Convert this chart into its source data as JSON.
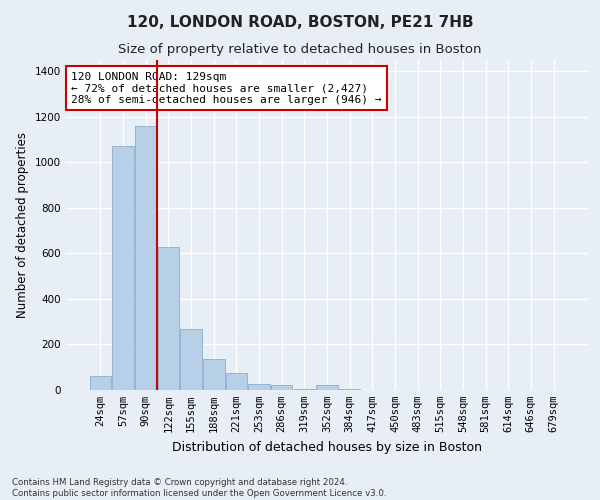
{
  "title": "120, LONDON ROAD, BOSTON, PE21 7HB",
  "subtitle": "Size of property relative to detached houses in Boston",
  "xlabel": "Distribution of detached houses by size in Boston",
  "ylabel": "Number of detached properties",
  "categories": [
    "24sqm",
    "57sqm",
    "90sqm",
    "122sqm",
    "155sqm",
    "188sqm",
    "221sqm",
    "253sqm",
    "286sqm",
    "319sqm",
    "352sqm",
    "384sqm",
    "417sqm",
    "450sqm",
    "483sqm",
    "515sqm",
    "548sqm",
    "581sqm",
    "614sqm",
    "646sqm",
    "679sqm"
  ],
  "values": [
    60,
    1070,
    1160,
    630,
    270,
    135,
    75,
    25,
    20,
    5,
    20,
    5,
    0,
    0,
    0,
    0,
    0,
    0,
    0,
    0,
    0
  ],
  "bar_color": "#b8cfe8",
  "bar_edge_color": "#8aaece",
  "background_color": "#e8eef5",
  "grid_color": "#ffffff",
  "vline_x_index": 3,
  "vline_color": "#cc0000",
  "annotation_text": "120 LONDON ROAD: 129sqm\n← 72% of detached houses are smaller (2,427)\n28% of semi-detached houses are larger (946) →",
  "annotation_box_color": "#ffffff",
  "annotation_box_edge": "#cc0000",
  "ylim": [
    0,
    1450
  ],
  "yticks": [
    0,
    200,
    400,
    600,
    800,
    1000,
    1200,
    1400
  ],
  "footnote": "Contains HM Land Registry data © Crown copyright and database right 2024.\nContains public sector information licensed under the Open Government Licence v3.0.",
  "title_fontsize": 11,
  "subtitle_fontsize": 9.5,
  "xlabel_fontsize": 9,
  "ylabel_fontsize": 8.5,
  "tick_fontsize": 7.5
}
